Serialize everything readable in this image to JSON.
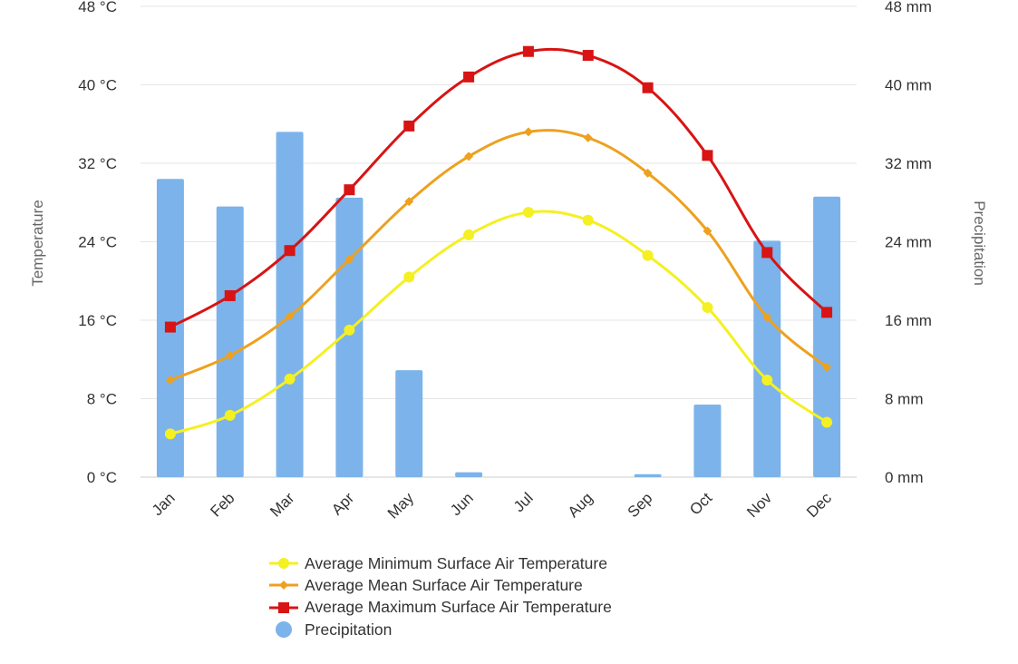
{
  "chart_data": {
    "type": "bar+line",
    "categories": [
      "Jan",
      "Feb",
      "Mar",
      "Apr",
      "May",
      "Jun",
      "Jul",
      "Aug",
      "Sep",
      "Oct",
      "Nov",
      "Dec"
    ],
    "y_left": {
      "title": "Temperature",
      "unit": "°C",
      "ticks": [
        0,
        8,
        16,
        24,
        32,
        40,
        48
      ],
      "tick_labels": [
        "0 °C",
        "8 °C",
        "16 °C",
        "24 °C",
        "32 °C",
        "40 °C",
        "48 °C"
      ],
      "range": [
        0,
        48
      ]
    },
    "y_right": {
      "title": "Precipitation",
      "unit": "mm",
      "ticks": [
        0,
        8,
        16,
        24,
        32,
        40,
        48
      ],
      "tick_labels": [
        "0 mm",
        "8 mm",
        "16 mm",
        "24 mm",
        "32 mm",
        "40 mm",
        "48 mm"
      ],
      "range": [
        0,
        48
      ]
    },
    "grid": true,
    "legend_position": "bottom",
    "series": [
      {
        "name": "Average Minimum Surface Air Temperature",
        "kind": "line",
        "axis": "left",
        "marker": "circle",
        "color": "#f4f022",
        "values": [
          4.4,
          6.3,
          10.0,
          15.0,
          20.4,
          24.7,
          27.0,
          26.2,
          22.6,
          17.3,
          9.9,
          5.6
        ]
      },
      {
        "name": "Average Mean Surface Air Temperature",
        "kind": "line",
        "axis": "left",
        "marker": "diamond",
        "color": "#eda11f",
        "values": [
          9.9,
          12.4,
          16.4,
          22.2,
          28.1,
          32.7,
          35.2,
          34.6,
          31.0,
          25.1,
          16.3,
          11.2
        ]
      },
      {
        "name": "Average Maximum Surface Air Temperature",
        "kind": "line",
        "axis": "left",
        "marker": "square",
        "color": "#d81414",
        "values": [
          15.3,
          18.5,
          23.1,
          29.3,
          35.8,
          40.8,
          43.4,
          43.0,
          39.7,
          32.8,
          22.9,
          16.8
        ]
      },
      {
        "name": "Precipitation",
        "kind": "bar",
        "axis": "right",
        "marker": "circle",
        "color": "#7cb3ea",
        "values": [
          30.4,
          27.6,
          35.2,
          28.5,
          10.9,
          0.5,
          0.0,
          0.0,
          0.3,
          7.4,
          24.1,
          28.6
        ]
      }
    ]
  }
}
